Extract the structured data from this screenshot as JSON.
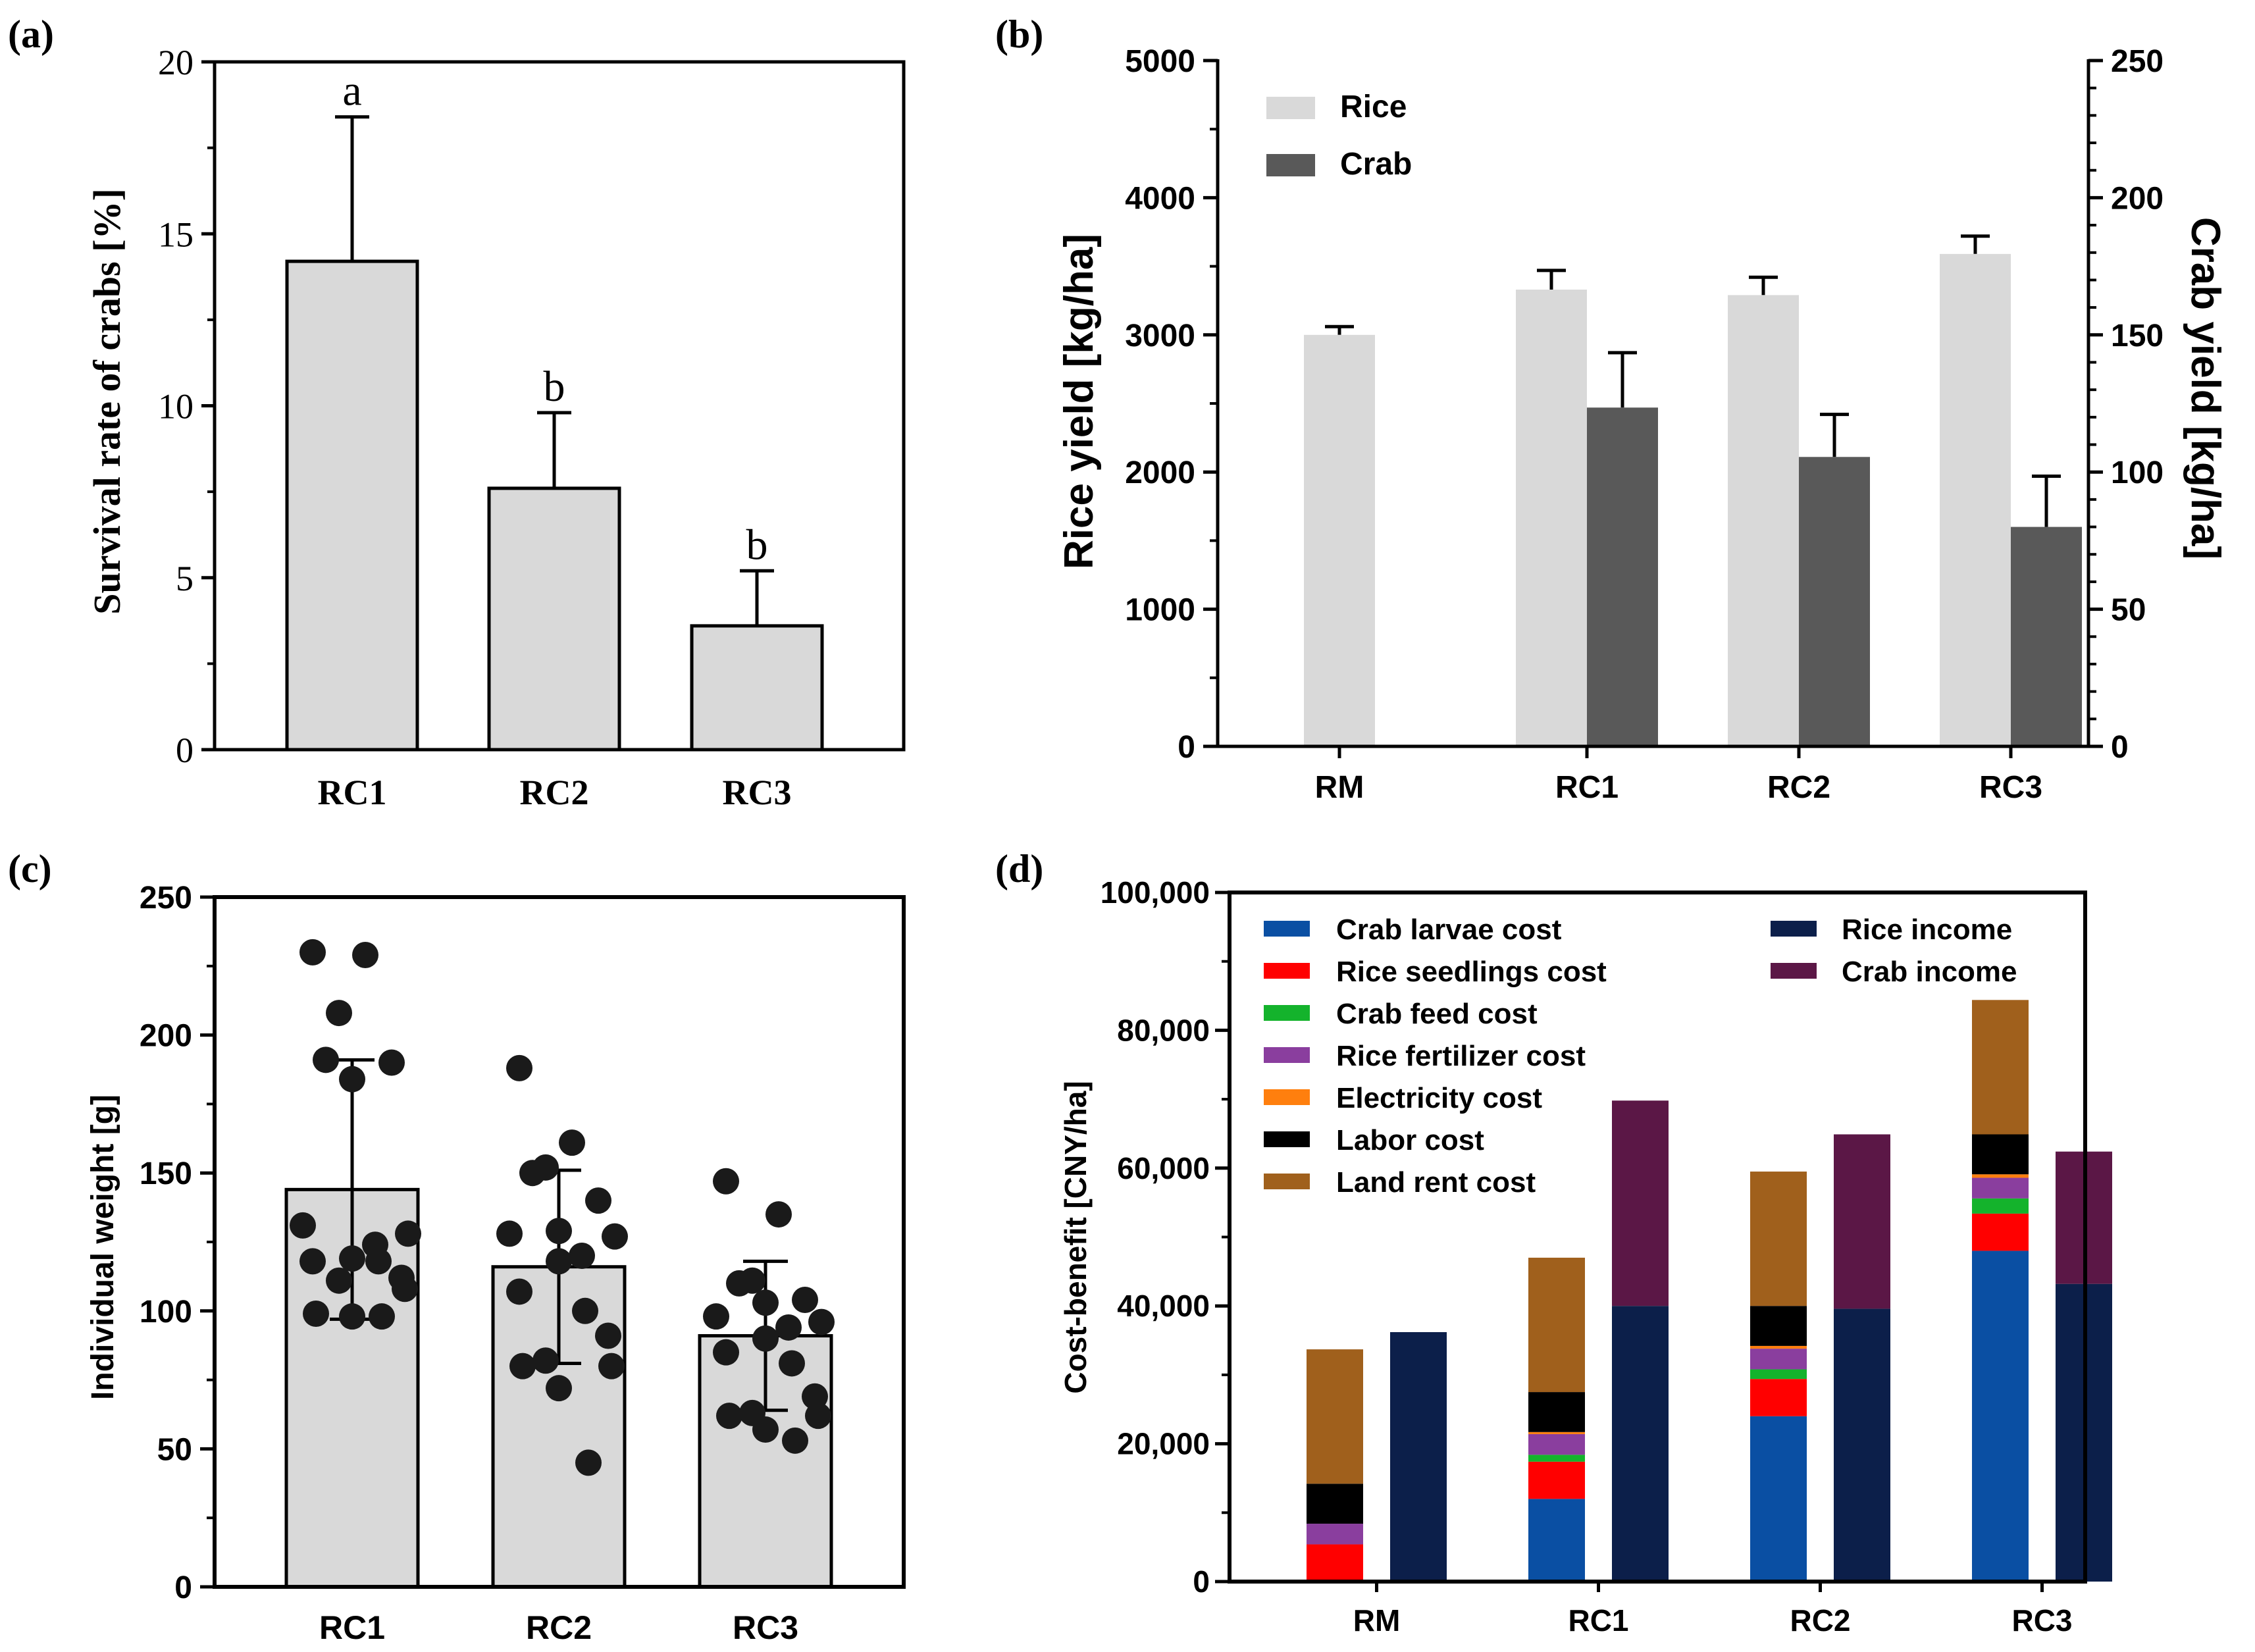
{
  "chart_data": [
    {
      "panel": "(a)",
      "type": "bar",
      "categories": [
        "RC1",
        "RC2",
        "RC3"
      ],
      "values": [
        14.2,
        7.6,
        3.6
      ],
      "errors": [
        4.2,
        2.2,
        1.6
      ],
      "letters": [
        "a",
        "b",
        "b"
      ],
      "ylabel": "Survival rate of crabs [%]",
      "xlabel": "",
      "ylim": [
        0,
        20
      ],
      "yticks": [
        0,
        5,
        10,
        15,
        20
      ],
      "bar_color": "#d9d9d9"
    },
    {
      "panel": "(b)",
      "type": "bar",
      "categories": [
        "RM",
        "RC1",
        "RC2",
        "RC3"
      ],
      "series": [
        {
          "name": "Rice",
          "axis": "left",
          "values": [
            3000,
            3330,
            3290,
            3590
          ],
          "errors": [
            60,
            140,
            130,
            130
          ],
          "color": "#d9d9d9"
        },
        {
          "name": "Crab",
          "axis": "right",
          "values": [
            null,
            123.5,
            105.5,
            80
          ],
          "errors": [
            null,
            20,
            15.5,
            18.5
          ],
          "color": "#595959"
        }
      ],
      "ylabel": "Rice yield  [kg/ha]",
      "y2label": "Crab yield  [kg/ha]",
      "ylim": [
        0,
        5000
      ],
      "yticks": [
        0,
        1000,
        2000,
        3000,
        4000,
        5000
      ],
      "y2lim": [
        0,
        250
      ],
      "y2ticks": [
        0,
        50,
        100,
        150,
        200,
        250
      ],
      "legend_position": "top-left"
    },
    {
      "panel": "(c)",
      "type": "bar",
      "categories": [
        "RC1",
        "RC2",
        "RC3"
      ],
      "values": [
        144,
        116,
        91
      ],
      "sd": [
        47,
        35,
        27
      ],
      "points": [
        [
          230,
          229,
          208,
          191,
          190,
          184,
          131,
          128,
          124,
          119,
          118,
          118,
          112,
          111,
          108,
          99,
          98,
          98
        ],
        [
          188,
          161,
          152,
          150,
          140,
          129,
          128,
          127,
          120,
          118,
          107,
          100,
          91,
          82,
          80,
          80,
          72,
          45
        ],
        [
          147,
          135,
          111,
          110,
          104,
          103,
          98,
          96,
          94,
          90,
          85,
          81,
          69,
          63,
          62,
          62,
          57,
          53
        ]
      ],
      "ylabel": "Individual weight [g]",
      "ylim": [
        0,
        250
      ],
      "yticks": [
        0,
        50,
        100,
        150,
        200,
        250
      ],
      "bar_color": "#d9d9d9"
    },
    {
      "panel": "(d)",
      "type": "bar",
      "stacked": true,
      "categories": [
        "RM",
        "RC1",
        "RC2",
        "RC3"
      ],
      "cost_series": [
        {
          "name": "Crab larvae cost",
          "color": "#0a4fa3",
          "values": [
            0,
            12000,
            24000,
            48000
          ]
        },
        {
          "name": "Rice seedlings cost",
          "color": "#ff0000",
          "values": [
            5400,
            5400,
            5400,
            5400
          ]
        },
        {
          "name": "Crab feed cost",
          "color": "#14b32c",
          "values": [
            0,
            1000,
            1400,
            2200
          ]
        },
        {
          "name": "Rice fertilizer cost",
          "color": "#8a3e9e",
          "values": [
            3000,
            3000,
            3000,
            3000
          ]
        },
        {
          "name": "Electricity cost",
          "color": "#ff7f0e",
          "values": [
            0,
            300,
            400,
            500
          ]
        },
        {
          "name": "Labor cost",
          "color": "#000000",
          "values": [
            5800,
            5800,
            5800,
            5800
          ]
        },
        {
          "name": "Land rent cost",
          "color": "#a0601c",
          "values": [
            19500,
            19500,
            19500,
            19500
          ]
        }
      ],
      "income_series": [
        {
          "name": "Rice income",
          "color": "#0c1f4a",
          "values": [
            36200,
            40000,
            39600,
            43200
          ]
        },
        {
          "name": "Crab income",
          "color": "#5b1746",
          "values": [
            0,
            29800,
            25300,
            19200
          ]
        }
      ],
      "legend": {
        "left": [
          "Crab larvae cost",
          "Rice seedlings cost",
          "Crab feed cost",
          "Rice fertilizer cost",
          "Electricity cost",
          "Labor cost",
          "Land rent cost"
        ],
        "right": [
          "Rice income",
          "Crab income"
        ]
      },
      "ylabel": "Cost-benefit [CNY/ha]",
      "ylim": [
        0,
        100000
      ],
      "yticks": [
        0,
        20000,
        40000,
        60000,
        80000,
        100000
      ],
      "ytick_labels": [
        "0",
        "20,000",
        "40,000",
        "60,000",
        "80,000",
        "100,000"
      ]
    }
  ]
}
